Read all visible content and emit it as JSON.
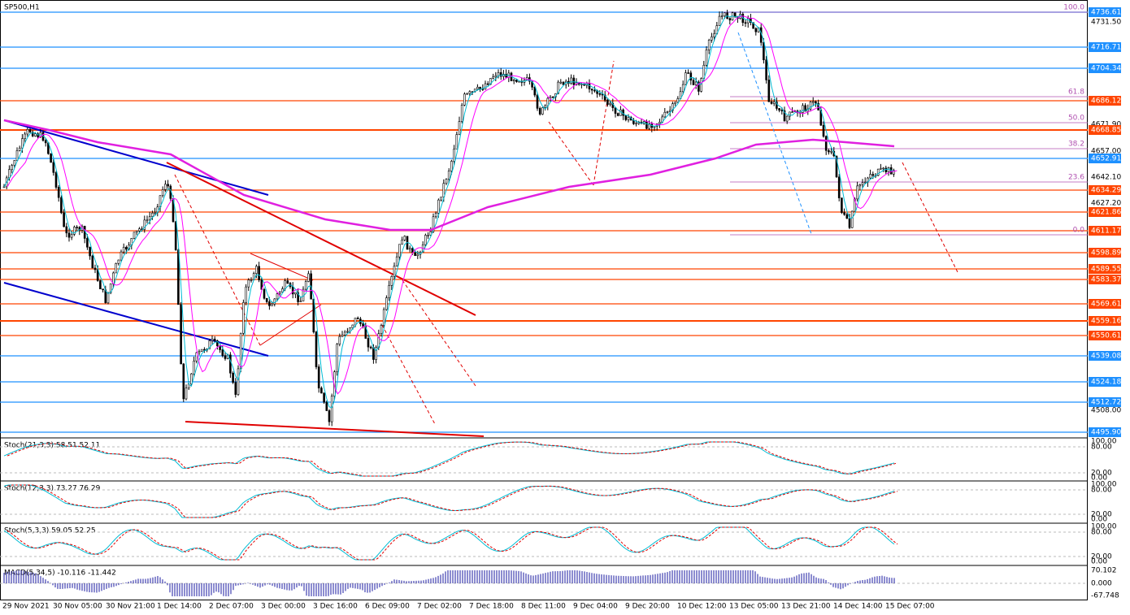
{
  "symbol_label": "SP500,H1",
  "price_labels": [
    "4736.61",
    "4731.50",
    "4716.71",
    "4704.34",
    "4686.12",
    "4671.90",
    "4668.85",
    "4657.00",
    "4652.91",
    "4642.10",
    "4634.29",
    "4627.20",
    "4621.86",
    "4611.17",
    "4598.89",
    "4589.55",
    "4583.37",
    "4569.61",
    "4559.16",
    "4550.61",
    "4539.08",
    "4524.18",
    "4512.72",
    "4508.00",
    "4495.90"
  ],
  "fib_labels": [
    "100.0",
    "61.8",
    "50.0",
    "38.2",
    "23.6",
    "0.0"
  ],
  "panels": [
    {
      "label": "Stoch(21,3,3) 58.51 52.11",
      "axis": [
        "100.00",
        "80.00",
        "20.00",
        "0.00"
      ]
    },
    {
      "label": "Stoch(12,3,3) 73.27 76.29",
      "axis": [
        "100.00",
        "80.00",
        "20.00",
        "0.00"
      ]
    },
    {
      "label": "Stoch(5,3,3) 59.05 52.25",
      "axis": [
        "100.00",
        "80.00",
        "20.00",
        "0.00"
      ]
    },
    {
      "label": "MACD(5,34,5) -10.116 -11.442",
      "axis": [
        "70.102",
        "0.000",
        "-67.748"
      ]
    }
  ],
  "time_labels": [
    "29 Nov 2021",
    "30 Nov 05:00",
    "30 Nov 21:00",
    "1 Dec 14:00",
    "2 Dec 07:00",
    "3 Dec 00:00",
    "3 Dec 16:00",
    "6 Dec 09:00",
    "7 Dec 02:00",
    "7 Dec 18:00",
    "8 Dec 11:00",
    "9 Dec 04:00",
    "9 Dec 20:00",
    "10 Dec 12:00",
    "13 Dec 05:00",
    "13 Dec 21:00",
    "14 Dec 14:00",
    "15 Dec 07:00"
  ]
}
